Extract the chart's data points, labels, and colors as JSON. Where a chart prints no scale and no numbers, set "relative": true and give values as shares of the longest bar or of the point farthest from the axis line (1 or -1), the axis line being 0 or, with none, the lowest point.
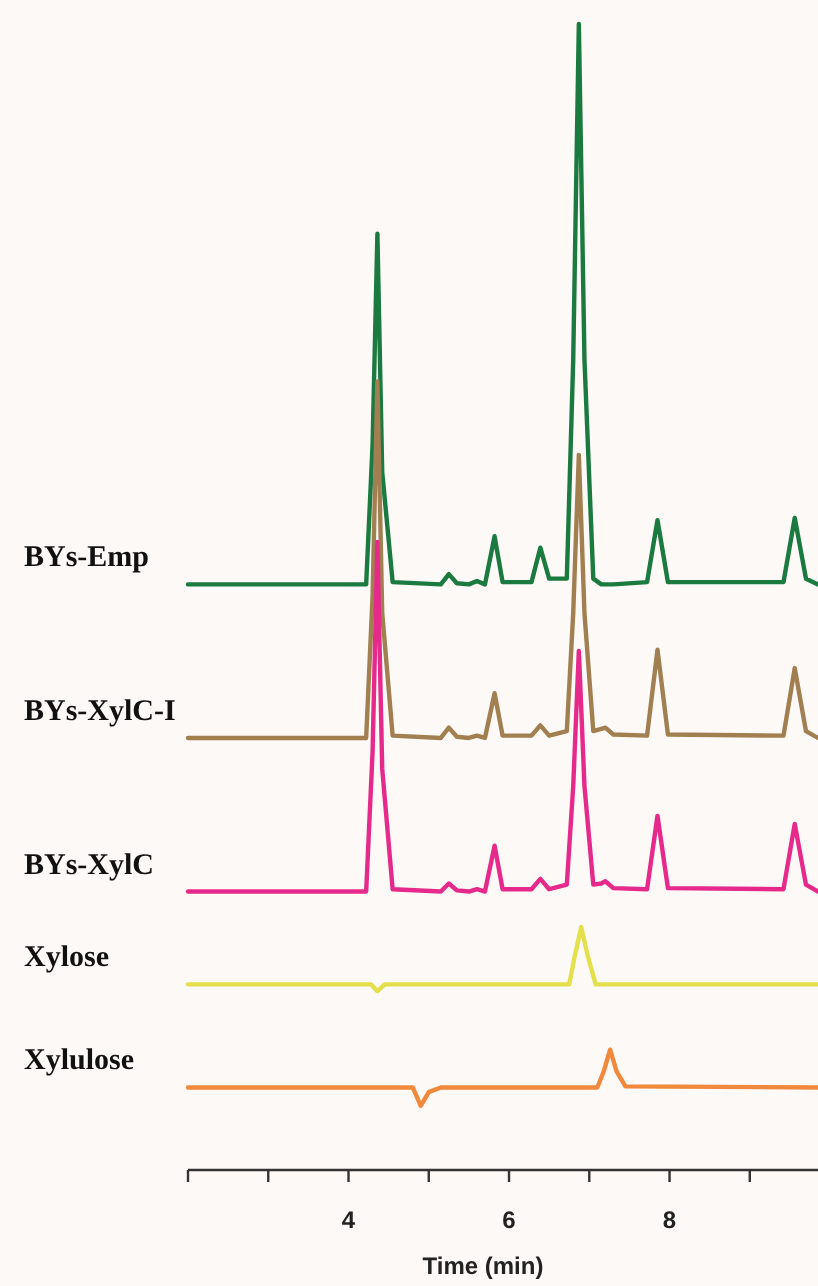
{
  "chart_data": {
    "type": "line",
    "relative": true,
    "xlim": [
      2,
      9.85
    ],
    "xticks": [
      {
        "value": 2,
        "label": null
      },
      {
        "value": 3,
        "label": null
      },
      4,
      {
        "value": 5,
        "label": null
      },
      6,
      {
        "value": 7,
        "label": null
      },
      8,
      {
        "value": 9,
        "label": null
      }
    ],
    "xlabel": "Time (min)",
    "series": [
      {
        "name": "BYs-Emp",
        "color": "#1b7a40",
        "x": [
          2,
          4.22,
          4.3,
          4.36,
          4.42,
          4.55,
          5.15,
          5.25,
          5.35,
          5.5,
          5.6,
          5.7,
          5.82,
          5.92,
          6.28,
          6.39,
          6.5,
          6.72,
          6.8,
          6.87,
          6.94,
          7.05,
          7.15,
          7.2,
          7.3,
          7.72,
          7.85,
          7.98,
          9.42,
          9.56,
          9.7,
          9.85
        ],
        "values": [
          0.511,
          0.511,
          0.633,
          0.817,
          0.609,
          0.513,
          0.511,
          0.52,
          0.512,
          0.511,
          0.514,
          0.511,
          0.553,
          0.513,
          0.513,
          0.543,
          0.516,
          0.516,
          0.707,
          1,
          0.707,
          0.516,
          0.511,
          0.511,
          0.511,
          0.513,
          0.567,
          0.513,
          0.513,
          0.569,
          0.516,
          0.511
        ]
      },
      {
        "name": "BYs-XylC-I",
        "color": "#a27f50",
        "x": [
          2,
          4.22,
          4.3,
          4.36,
          4.42,
          4.55,
          5.15,
          5.25,
          5.35,
          5.5,
          5.6,
          5.7,
          5.82,
          5.92,
          6.28,
          6.39,
          6.5,
          6.72,
          6.8,
          6.87,
          6.94,
          7.05,
          7.15,
          7.2,
          7.3,
          7.72,
          7.85,
          7.98,
          9.42,
          9.56,
          9.7,
          9.85
        ],
        "values": [
          0.377,
          0.377,
          0.501,
          0.688,
          0.486,
          0.379,
          0.377,
          0.386,
          0.378,
          0.377,
          0.379,
          0.377,
          0.416,
          0.379,
          0.379,
          0.388,
          0.379,
          0.383,
          0.486,
          0.624,
          0.486,
          0.383,
          0.385,
          0.386,
          0.38,
          0.379,
          0.454,
          0.38,
          0.379,
          0.438,
          0.383,
          0.377
        ]
      },
      {
        "name": "BYs-XylC",
        "color": "#e62a8c",
        "x": [
          2,
          4.22,
          4.3,
          4.36,
          4.42,
          4.55,
          5.15,
          5.25,
          5.35,
          5.5,
          5.6,
          5.7,
          5.82,
          5.92,
          6.28,
          6.39,
          6.5,
          6.72,
          6.8,
          6.87,
          6.94,
          7.05,
          7.15,
          7.2,
          7.3,
          7.72,
          7.85,
          7.98,
          9.42,
          9.56,
          9.7,
          9.85
        ],
        "values": [
          0.243,
          0.243,
          0.365,
          0.548,
          0.35,
          0.245,
          0.243,
          0.25,
          0.244,
          0.243,
          0.245,
          0.243,
          0.283,
          0.245,
          0.245,
          0.254,
          0.245,
          0.249,
          0.335,
          0.453,
          0.335,
          0.249,
          0.25,
          0.252,
          0.246,
          0.245,
          0.309,
          0.246,
          0.245,
          0.302,
          0.249,
          0.243
        ]
      },
      {
        "name": "Xylose",
        "color": "#e4e04c",
        "x": [
          2,
          4.28,
          4.36,
          4.45,
          6.75,
          6.82,
          6.9,
          6.98,
          7.08,
          9.85
        ],
        "values": [
          0.162,
          0.162,
          0.156,
          0.162,
          0.162,
          0.187,
          0.212,
          0.187,
          0.162,
          0.162
        ]
      },
      {
        "name": "Xylulose",
        "color": "#f0893c",
        "x": [
          2,
          4.8,
          4.9,
          5.0,
          5.15,
          7.1,
          7.18,
          7.26,
          7.34,
          7.45,
          9.85
        ],
        "values": [
          0.072,
          0.072,
          0.056,
          0.068,
          0.072,
          0.072,
          0.086,
          0.105,
          0.086,
          0.073,
          0.072
        ]
      }
    ]
  }
}
